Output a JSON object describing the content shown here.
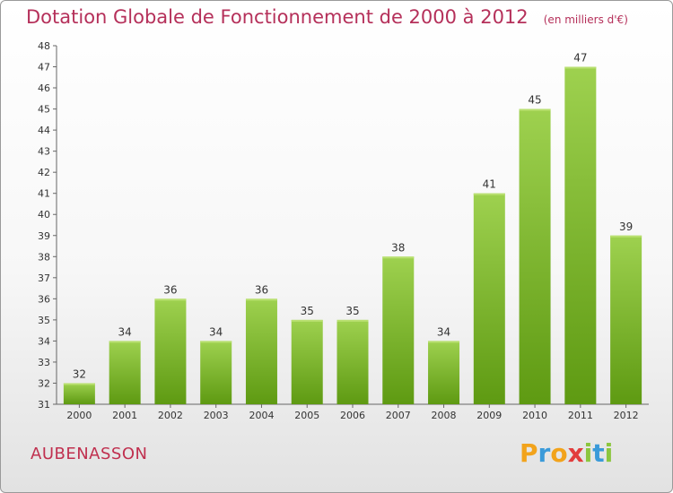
{
  "chart_data": {
    "type": "bar",
    "title": "Dotation Globale de Fonctionnement de 2000 à 2012",
    "subtitle": "(en milliers d'€)",
    "xlabel": "",
    "ylabel": "",
    "categories": [
      "2000",
      "2001",
      "2002",
      "2003",
      "2004",
      "2005",
      "2006",
      "2007",
      "2008",
      "2009",
      "2010",
      "2011",
      "2012"
    ],
    "values": [
      32,
      34,
      36,
      34,
      36,
      35,
      35,
      38,
      34,
      41,
      45,
      47,
      39
    ],
    "ylim": [
      31,
      48
    ],
    "yticks": [
      31,
      32,
      33,
      34,
      35,
      36,
      37,
      38,
      39,
      40,
      41,
      42,
      43,
      44,
      45,
      46,
      47,
      48
    ],
    "grid": false,
    "legend": "none",
    "colors": {
      "bar_top": "#9ed14f",
      "bar_bottom": "#5e9a12",
      "title": "#b5305a"
    }
  },
  "commune": "AUBENASSON",
  "brand": {
    "letters": [
      "P",
      "r",
      "o",
      "x",
      "i",
      "t",
      "i"
    ],
    "colors": [
      "#f2a31b",
      "#3a9ad9",
      "#f2a31b",
      "#e23c3c",
      "#8cc63f",
      "#3a9ad9",
      "#8cc63f"
    ]
  }
}
